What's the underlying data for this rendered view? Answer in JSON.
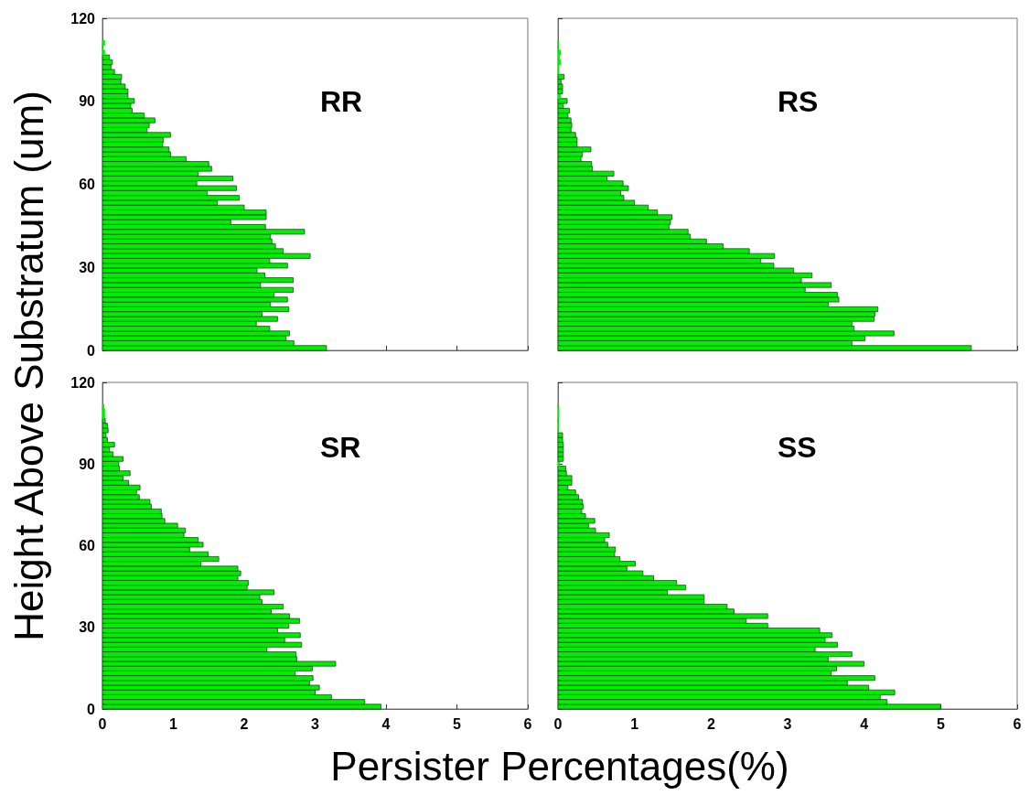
{
  "chart_data": [
    {
      "type": "histogram",
      "title": "RR",
      "ylabel": "Height Above Substratum (um)",
      "orientation": "horizontal",
      "color": "#00ee00",
      "tick_labels": "y",
      "grid": false,
      "bins": [
        0,
        1.75,
        3.5,
        5.25,
        7,
        8.75,
        10.5,
        12.25,
        14,
        15.75,
        17.5,
        19.25,
        21,
        22.75,
        24.5,
        26.25,
        28,
        29.75,
        31.5,
        33.25,
        35,
        36.75,
        38.5,
        40.25,
        42,
        43.75,
        45.5,
        47.25,
        49,
        50.75,
        52.5,
        54.25,
        56,
        57.75,
        59.5,
        61.25,
        63,
        64.75,
        66.5,
        68.25,
        70,
        71.75,
        73.5,
        75.25,
        77,
        78.75,
        80.5,
        82.25,
        84,
        85.75,
        87.5,
        89.25,
        91,
        92.75,
        94.5,
        96.25,
        98,
        99.75,
        101.5,
        103.25,
        105,
        106.75,
        108.5,
        110.25,
        112
      ],
      "values": [
        3.16,
        2.7,
        2.59,
        2.64,
        2.36,
        2.17,
        2.47,
        2.25,
        2.63,
        2.37,
        2.61,
        2.42,
        2.69,
        2.23,
        2.69,
        2.29,
        2.18,
        2.61,
        2.36,
        2.93,
        2.55,
        2.44,
        2.39,
        2.37,
        2.85,
        2.3,
        1.81,
        2.31,
        2.31,
        2.0,
        1.62,
        1.93,
        1.48,
        1.89,
        1.33,
        1.84,
        1.35,
        1.54,
        1.5,
        1.18,
        0.96,
        0.94,
        0.85,
        0.86,
        0.96,
        0.63,
        0.66,
        0.74,
        0.59,
        0.42,
        0.4,
        0.45,
        0.36,
        0.36,
        0.32,
        0.26,
        0.27,
        0.17,
        0.12,
        0.14,
        0.1,
        0.03,
        0,
        0.03
      ],
      "xlim": [
        0,
        6
      ],
      "xticks": [
        0,
        1,
        2,
        3,
        4,
        5,
        6
      ],
      "ylim": [
        0,
        120
      ],
      "yticks": [
        0,
        30,
        60,
        90,
        120
      ]
    },
    {
      "type": "histogram",
      "title": "RS",
      "orientation": "horizontal",
      "color": "#00ee00",
      "tick_labels": false,
      "grid": false,
      "bins": [
        0,
        1.75,
        3.5,
        5.25,
        7,
        8.75,
        10.5,
        12.25,
        14,
        15.75,
        17.5,
        19.25,
        21,
        22.75,
        24.5,
        26.25,
        28,
        29.75,
        31.5,
        33.25,
        35,
        36.75,
        38.5,
        40.25,
        42,
        43.75,
        45.5,
        47.25,
        49,
        50.75,
        52.5,
        54.25,
        56,
        57.75,
        59.5,
        61.25,
        63,
        64.75,
        66.5,
        68.25,
        70,
        71.75,
        73.5,
        75.25,
        77,
        78.75,
        80.5,
        82.25,
        84,
        85.75,
        87.5,
        89.25,
        91,
        92.75,
        94.5,
        96.25,
        98,
        99.75,
        101.5,
        103.25,
        105,
        106.75,
        108.5,
        110.25,
        112
      ],
      "values": [
        5.4,
        3.84,
        4.01,
        4.39,
        3.87,
        3.84,
        4.13,
        4.14,
        4.18,
        3.53,
        3.67,
        3.65,
        3.23,
        3.57,
        3.18,
        3.32,
        3.08,
        2.82,
        2.65,
        2.83,
        2.5,
        2.16,
        1.94,
        1.73,
        1.7,
        1.45,
        1.47,
        1.49,
        1.3,
        1.18,
        1.0,
        0.86,
        0.82,
        0.92,
        0.85,
        0.64,
        0.73,
        0.45,
        0.44,
        0.3,
        0.32,
        0.43,
        0.25,
        0.25,
        0.23,
        0.17,
        0.18,
        0.17,
        0.13,
        0.15,
        0.07,
        0.12,
        0.03,
        0.06,
        0.06,
        0.04,
        0.08,
        0.01,
        0.01,
        0.03,
        0.02,
        0.03,
        0,
        0
      ],
      "xlim": [
        0,
        6
      ],
      "xticks": [
        0,
        1,
        2,
        3,
        4,
        5,
        6
      ],
      "ylim": [
        0,
        120
      ],
      "yticks": [
        0,
        30,
        60,
        90,
        120
      ]
    },
    {
      "type": "histogram",
      "title": "SR",
      "orientation": "horizontal",
      "color": "#00ee00",
      "grid": false,
      "bins": [
        0,
        1.75,
        3.5,
        5.25,
        7,
        8.75,
        10.5,
        12.25,
        14,
        15.75,
        17.5,
        19.25,
        21,
        22.75,
        24.5,
        26.25,
        28,
        29.75,
        31.5,
        33.25,
        35,
        36.75,
        38.5,
        40.25,
        42,
        43.75,
        45.5,
        47.25,
        49,
        50.75,
        52.5,
        54.25,
        56,
        57.75,
        59.5,
        61.25,
        63,
        64.75,
        66.5,
        68.25,
        70,
        71.75,
        73.5,
        75.25,
        77,
        78.75,
        80.5,
        82.25,
        84,
        85.75,
        87.5,
        89.25,
        91,
        92.75,
        94.5,
        96.25,
        98,
        99.75,
        101.5,
        103.25,
        105,
        106.75,
        108.5,
        110.25,
        112
      ],
      "values": [
        3.93,
        3.7,
        3.23,
        3.0,
        3.06,
        2.92,
        2.97,
        2.72,
        2.96,
        3.29,
        2.74,
        2.73,
        2.32,
        2.81,
        2.57,
        2.79,
        2.47,
        2.63,
        2.78,
        2.64,
        2.38,
        2.55,
        2.25,
        2.22,
        2.42,
        2.04,
        2.06,
        1.91,
        1.95,
        1.91,
        1.39,
        1.64,
        1.49,
        1.23,
        1.42,
        1.35,
        1.15,
        1.17,
        1.06,
        0.88,
        0.84,
        0.83,
        0.69,
        0.67,
        0.52,
        0.48,
        0.53,
        0.37,
        0.29,
        0.39,
        0.24,
        0.23,
        0.29,
        0.15,
        0.1,
        0.17,
        0.07,
        0.05,
        0.08,
        0.07,
        0.04,
        0.03,
        0.03,
        0.02
      ],
      "xlim": [
        0,
        6
      ],
      "xticks": [
        0,
        1,
        2,
        3,
        4,
        5,
        6
      ],
      "ylim": [
        0,
        120
      ],
      "yticks": [
        0,
        30,
        60,
        90,
        120
      ]
    },
    {
      "type": "histogram",
      "title": "SS",
      "xlabel": "Persister Percentages(%)",
      "orientation": "horizontal",
      "color": "#00ee00",
      "tick_labels": "x",
      "grid": false,
      "bins": [
        0,
        1.75,
        3.5,
        5.25,
        7,
        8.75,
        10.5,
        12.25,
        14,
        15.75,
        17.5,
        19.25,
        21,
        22.75,
        24.5,
        26.25,
        28,
        29.75,
        31.5,
        33.25,
        35,
        36.75,
        38.5,
        40.25,
        42,
        43.75,
        45.5,
        47.25,
        49,
        50.75,
        52.5,
        54.25,
        56,
        57.75,
        59.5,
        61.25,
        63,
        64.75,
        66.5,
        68.25,
        70,
        71.75,
        73.5,
        75.25,
        77,
        78.75,
        80.5,
        82.25,
        84,
        85.75,
        87.5,
        89.25,
        91,
        92.75,
        94.5,
        96.25,
        98,
        99.75,
        101.5,
        103.25,
        105,
        106.75,
        108.5,
        110.25,
        112
      ],
      "values": [
        5.0,
        4.3,
        4.21,
        4.4,
        4.06,
        3.78,
        4.14,
        3.57,
        3.64,
        4.0,
        3.53,
        3.84,
        3.36,
        3.65,
        3.49,
        3.58,
        3.42,
        2.74,
        2.46,
        2.74,
        2.3,
        2.21,
        1.91,
        1.91,
        1.43,
        1.67,
        1.55,
        1.25,
        1.11,
        0.9,
        1.01,
        0.81,
        0.74,
        0.75,
        0.65,
        0.61,
        0.67,
        0.49,
        0.4,
        0.48,
        0.36,
        0.31,
        0.33,
        0.32,
        0.27,
        0.23,
        0.13,
        0.18,
        0.18,
        0.11,
        0.1,
        0.02,
        0.07,
        0.07,
        0.07,
        0.07,
        0.06,
        0.06,
        0,
        0.01,
        0,
        0.01,
        0.01,
        0
      ],
      "xlim": [
        0,
        6
      ],
      "xticks": [
        0,
        1,
        2,
        3,
        4,
        5,
        6
      ],
      "ylim": [
        0,
        120
      ],
      "yticks": [
        0,
        30,
        60,
        90,
        120
      ]
    }
  ]
}
